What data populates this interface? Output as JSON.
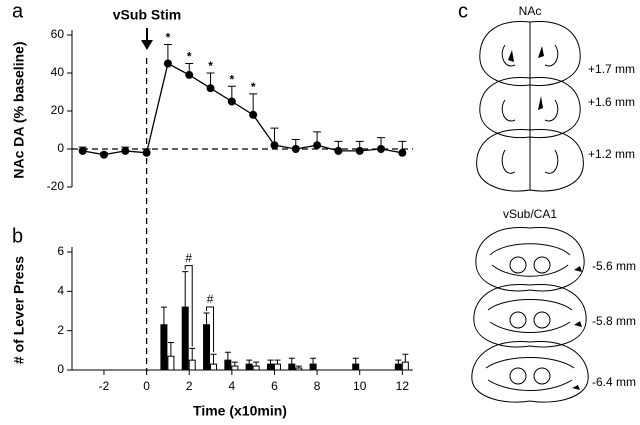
{
  "panel_labels": [
    "a",
    "b",
    "c"
  ],
  "chart_data": [
    {
      "type": "line",
      "title": "vSub Stim",
      "ylabel": "NAc DA (% baseline)",
      "x": [
        -3,
        -2,
        -1,
        0,
        1,
        2,
        3,
        4,
        5,
        6,
        7,
        8,
        9,
        10,
        11,
        12
      ],
      "series": [
        {
          "color": "#000000",
          "values": [
            -1,
            -3,
            -1,
            -2,
            45,
            39,
            32,
            25,
            18,
            2,
            0,
            2,
            -1,
            -1,
            0,
            -2
          ],
          "errors": [
            2,
            1,
            2,
            2,
            10,
            6,
            8,
            8,
            11,
            9,
            5,
            7,
            5,
            5,
            6,
            6
          ],
          "annotations": [
            null,
            null,
            null,
            null,
            "*",
            "*",
            "*",
            "*",
            "*",
            null,
            null,
            null,
            null,
            null,
            null,
            null
          ]
        }
      ],
      "hline": 0,
      "xlim": [
        -3.5,
        12.5
      ],
      "ylim": [
        -20,
        60
      ],
      "yticks": [
        -20,
        0,
        20,
        40,
        60
      ]
    },
    {
      "type": "bar",
      "ylabel": "# of Lever Press",
      "xlabel": "Time (x10min)",
      "x": [
        1,
        2,
        3,
        4,
        5,
        6,
        7,
        8,
        9,
        10,
        11,
        12
      ],
      "series": [
        {
          "color": "#000000",
          "values": [
            2.3,
            3.2,
            2.3,
            0.5,
            0.3,
            0.3,
            0.3,
            0.3,
            0,
            0.3,
            0,
            0.3
          ],
          "errors": [
            0.9,
            1.8,
            0.6,
            0.4,
            0.2,
            0.2,
            0.3,
            0.3,
            0,
            0.3,
            0,
            0.2
          ]
        },
        {
          "color": "#ffffff",
          "values": [
            0.7,
            0.5,
            0.3,
            0.2,
            0.2,
            0.3,
            0.1,
            0,
            0,
            0,
            0,
            0.4
          ],
          "errors": [
            0.7,
            0.6,
            0.5,
            0.2,
            0.2,
            0.2,
            0.1,
            0,
            0,
            0,
            0,
            0.4
          ]
        }
      ],
      "annotations": [
        null,
        "#",
        "#",
        null,
        null,
        null,
        null,
        null,
        null,
        null,
        null,
        null
      ],
      "xlim": [
        -3.5,
        12.5
      ],
      "xticks": [
        -2,
        0,
        2,
        4,
        6,
        8,
        10,
        12
      ],
      "ylim": [
        0,
        6
      ],
      "yticks": [
        0,
        2,
        4,
        6
      ]
    }
  ],
  "panel_c": {
    "groups": [
      {
        "title": "NAc",
        "levels": [
          "+1.7 mm",
          "+1.6 mm",
          "+1.2 mm"
        ]
      },
      {
        "title": "vSub/CA1",
        "levels": [
          "-5.6 mm",
          "-5.8 mm",
          "-6.4 mm"
        ]
      }
    ]
  }
}
